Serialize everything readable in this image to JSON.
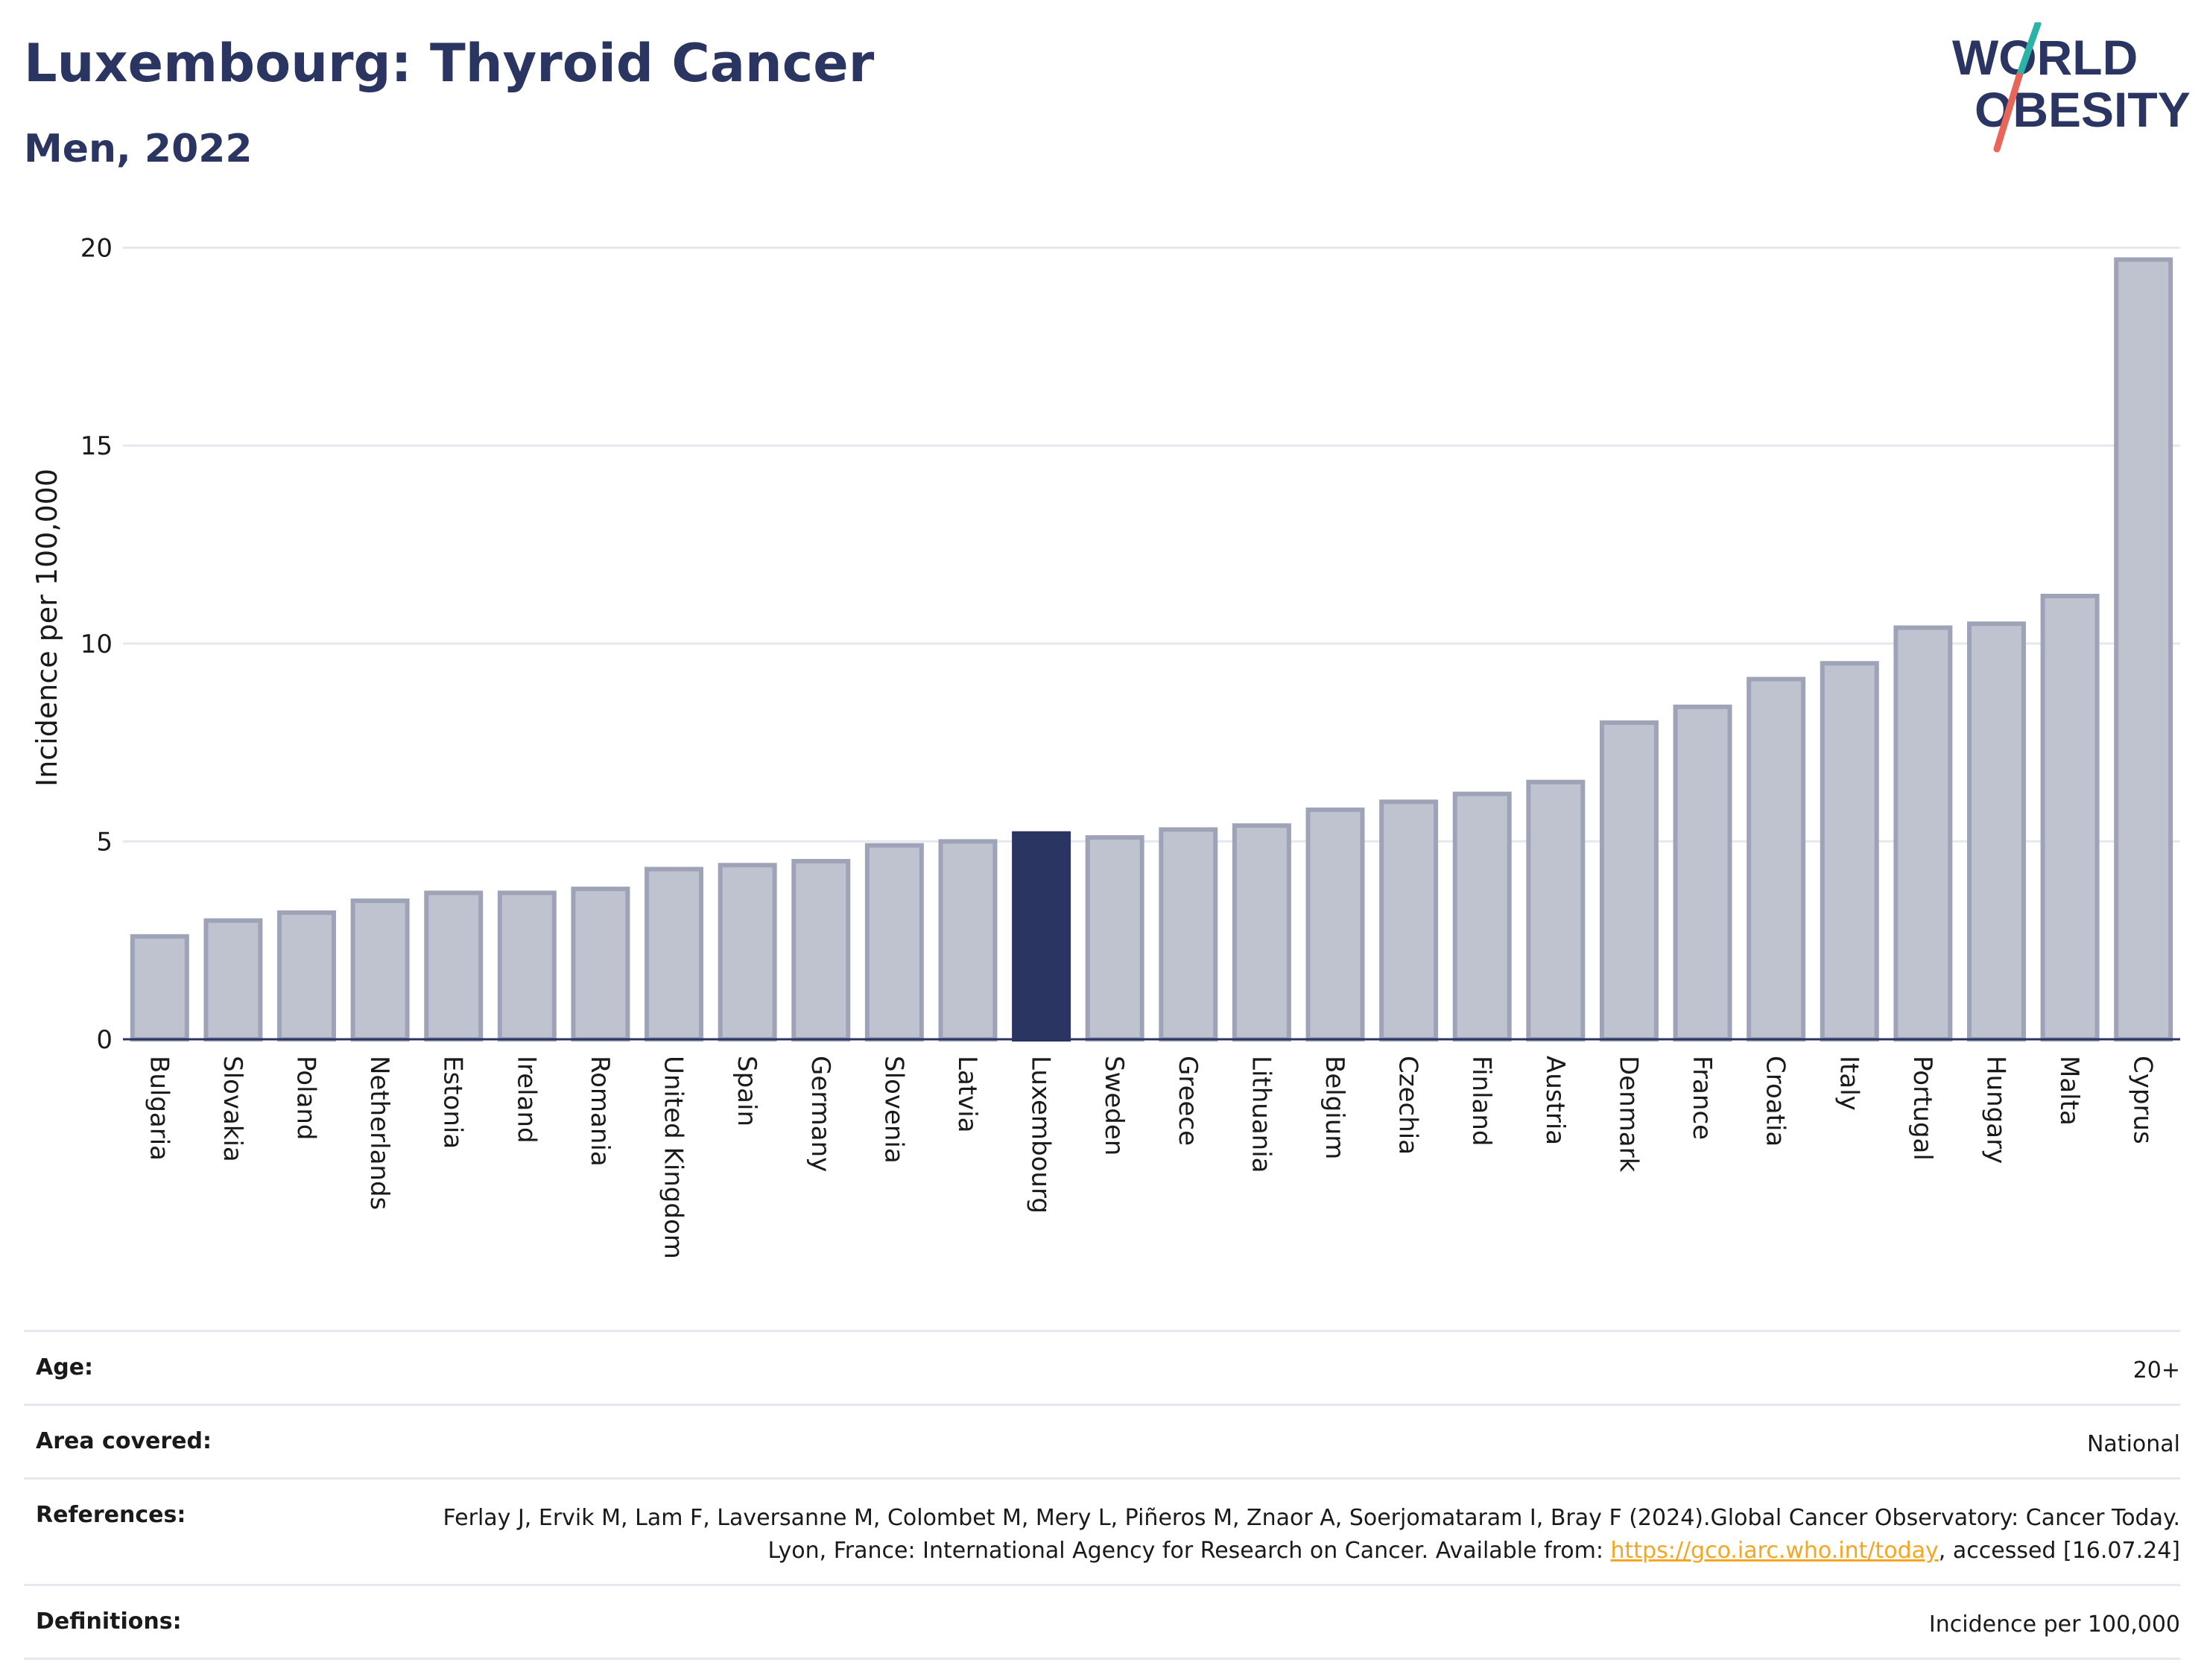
{
  "header": {
    "title": "Luxembourg: Thyroid Cancer",
    "subtitle": "Men, 2022"
  },
  "logo": {
    "line1": "WORLD",
    "line2": "OBESITY",
    "accent_colors": [
      "#2bb3a8",
      "#e8655a"
    ],
    "text_color": "#2b3561"
  },
  "chart_data": {
    "type": "bar",
    "ylabel": "Incidence per 100,000",
    "ylim": [
      0,
      20.8
    ],
    "yticks": [
      0,
      5,
      10,
      15,
      20
    ],
    "grid": true,
    "categories": [
      "Bulgaria",
      "Slovakia",
      "Poland",
      "Netherlands",
      "Estonia",
      "Ireland",
      "Romania",
      "United Kingdom",
      "Spain",
      "Germany",
      "Slovenia",
      "Latvia",
      "Luxembourg",
      "Sweden",
      "Greece",
      "Lithuania",
      "Belgium",
      "Czechia",
      "Finland",
      "Austria",
      "Denmark",
      "France",
      "Croatia",
      "Italy",
      "Portugal",
      "Hungary",
      "Malta",
      "Cyprus"
    ],
    "values": [
      2.6,
      3.0,
      3.2,
      3.5,
      3.7,
      3.7,
      3.8,
      4.3,
      4.4,
      4.5,
      4.9,
      5.0,
      5.2,
      5.1,
      5.3,
      5.4,
      5.8,
      6.0,
      6.2,
      6.5,
      8.0,
      8.4,
      9.1,
      9.5,
      10.4,
      10.5,
      11.2,
      19.7
    ],
    "highlight": "Luxembourg",
    "colors": {
      "bar": "#bfc2cf",
      "bar_outline": "#9ea3b8",
      "highlight": "#2b3561",
      "grid": "#e6e8ef",
      "axis": "#2b3561"
    }
  },
  "meta": {
    "rows": [
      {
        "label": "Age:",
        "value": "20+"
      },
      {
        "label": "Area covered:",
        "value": "National"
      },
      {
        "label": "References:",
        "value_before": "Ferlay J, Ervik M, Lam F, Laversanne M, Colombet M, Mery L, Piñeros M, Znaor A, Soerjomataram I, Bray F (2024).Global Cancer Observatory: Cancer Today. Lyon, France: International Agency for Research on Cancer. Available from: ",
        "link": "https://gco.iarc.who.int/today",
        "value_after": ", accessed [16.07.24]"
      },
      {
        "label": "Definitions:",
        "value": "Incidence per 100,000"
      }
    ]
  }
}
